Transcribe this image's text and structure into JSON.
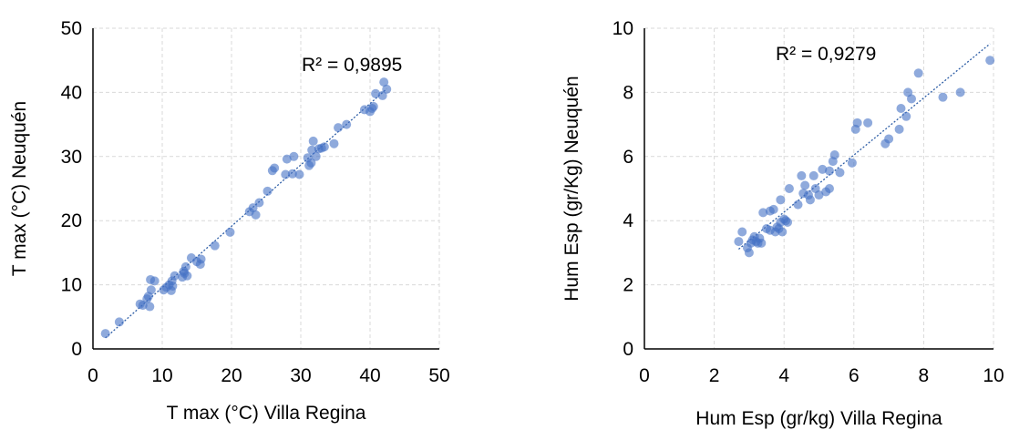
{
  "chart_data": [
    {
      "type": "scatter",
      "xlabel": "T max (°C) Villa Regina",
      "ylabel": "T max (°C) Neuquén",
      "xlim": [
        0,
        50
      ],
      "ylim": [
        0,
        50
      ],
      "x_ticks": [
        "0",
        "10",
        "20",
        "30",
        "40",
        "50"
      ],
      "y_ticks": [
        "0",
        "10",
        "20",
        "30",
        "40",
        "50"
      ],
      "grid": true,
      "trendline": "linear",
      "annotation": "R² = 0,9895",
      "marker_color": "#4472c4",
      "points": [
        [
          1.8,
          2.4
        ],
        [
          3.8,
          4.2
        ],
        [
          6.8,
          7.0
        ],
        [
          7.2,
          6.8
        ],
        [
          7.8,
          7.8
        ],
        [
          8.2,
          6.6
        ],
        [
          8.0,
          8.2
        ],
        [
          8.4,
          9.2
        ],
        [
          8.3,
          10.8
        ],
        [
          8.9,
          10.6
        ],
        [
          10.2,
          9.2
        ],
        [
          10.6,
          9.6
        ],
        [
          11.0,
          10.0
        ],
        [
          11.3,
          9.1
        ],
        [
          11.5,
          9.8
        ],
        [
          11.4,
          10.6
        ],
        [
          11.8,
          11.4
        ],
        [
          12.9,
          11.2
        ],
        [
          13.1,
          12.1
        ],
        [
          13.4,
          12.8
        ],
        [
          13.2,
          11.8
        ],
        [
          13.6,
          11.4
        ],
        [
          14.2,
          14.2
        ],
        [
          15.0,
          13.6
        ],
        [
          15.6,
          14.0
        ],
        [
          15.5,
          13.2
        ],
        [
          17.6,
          16.1
        ],
        [
          19.8,
          18.2
        ],
        [
          22.6,
          21.4
        ],
        [
          23.1,
          22.0
        ],
        [
          23.5,
          20.9
        ],
        [
          24.0,
          22.8
        ],
        [
          25.2,
          24.6
        ],
        [
          25.9,
          27.8
        ],
        [
          26.2,
          28.2
        ],
        [
          27.8,
          27.2
        ],
        [
          28.0,
          29.6
        ],
        [
          28.8,
          27.3
        ],
        [
          29.0,
          30.0
        ],
        [
          29.8,
          27.2
        ],
        [
          31.0,
          29.8
        ],
        [
          31.2,
          28.6
        ],
        [
          31.5,
          29.0
        ],
        [
          31.8,
          32.4
        ],
        [
          31.6,
          31.0
        ],
        [
          32.2,
          30.0
        ],
        [
          32.6,
          31.2
        ],
        [
          33.0,
          31.3
        ],
        [
          33.4,
          31.5
        ],
        [
          34.8,
          32.0
        ],
        [
          35.4,
          34.5
        ],
        [
          36.6,
          35.0
        ],
        [
          39.2,
          37.3
        ],
        [
          40.0,
          37.0
        ],
        [
          40.3,
          37.5
        ],
        [
          40.5,
          37.8
        ],
        [
          40.8,
          39.8
        ],
        [
          41.8,
          39.5
        ],
        [
          42.0,
          41.6
        ],
        [
          42.4,
          40.5
        ]
      ]
    },
    {
      "type": "scatter",
      "xlabel": "Hum Esp (gr/kg) Villa Regina",
      "ylabel": "Hum Esp (gr/Kg) Neuquén",
      "xlim": [
        0,
        10
      ],
      "ylim": [
        0,
        10
      ],
      "x_ticks": [
        "0",
        "2",
        "4",
        "6",
        "8",
        "10"
      ],
      "y_ticks": [
        "0",
        "2",
        "4",
        "6",
        "8",
        "10"
      ],
      "grid": true,
      "trendline": "linear",
      "annotation": "R² = 0,9279",
      "marker_color": "#4472c4",
      "points": [
        [
          2.7,
          3.35
        ],
        [
          2.8,
          3.65
        ],
        [
          2.95,
          3.15
        ],
        [
          3.0,
          3.0
        ],
        [
          3.05,
          3.3
        ],
        [
          3.1,
          3.4
        ],
        [
          3.15,
          3.5
        ],
        [
          3.2,
          3.35
        ],
        [
          3.25,
          3.3
        ],
        [
          3.3,
          3.45
        ],
        [
          3.35,
          3.3
        ],
        [
          3.4,
          4.25
        ],
        [
          3.5,
          3.75
        ],
        [
          3.6,
          3.7
        ],
        [
          3.6,
          4.3
        ],
        [
          3.7,
          4.35
        ],
        [
          3.75,
          3.65
        ],
        [
          3.8,
          3.8
        ],
        [
          3.85,
          3.75
        ],
        [
          3.9,
          3.95
        ],
        [
          3.95,
          3.65
        ],
        [
          3.9,
          4.65
        ],
        [
          4.0,
          4.05
        ],
        [
          4.05,
          4.0
        ],
        [
          4.1,
          3.95
        ],
        [
          4.15,
          5.0
        ],
        [
          4.4,
          4.5
        ],
        [
          4.5,
          5.4
        ],
        [
          4.55,
          4.85
        ],
        [
          4.6,
          5.1
        ],
        [
          4.7,
          4.8
        ],
        [
          4.75,
          4.65
        ],
        [
          4.85,
          5.4
        ],
        [
          4.9,
          5.0
        ],
        [
          5.0,
          4.8
        ],
        [
          5.1,
          5.6
        ],
        [
          5.2,
          4.9
        ],
        [
          5.3,
          5.0
        ],
        [
          5.3,
          5.55
        ],
        [
          5.4,
          5.85
        ],
        [
          5.45,
          6.05
        ],
        [
          5.6,
          5.5
        ],
        [
          5.95,
          5.8
        ],
        [
          6.05,
          6.85
        ],
        [
          6.1,
          7.05
        ],
        [
          6.4,
          7.05
        ],
        [
          6.9,
          6.4
        ],
        [
          7.0,
          6.55
        ],
        [
          7.3,
          6.85
        ],
        [
          7.35,
          7.5
        ],
        [
          7.5,
          7.25
        ],
        [
          7.55,
          8.0
        ],
        [
          7.65,
          7.8
        ],
        [
          7.85,
          8.6
        ],
        [
          8.55,
          7.85
        ],
        [
          9.05,
          8.0
        ],
        [
          9.9,
          9.0
        ]
      ]
    }
  ]
}
